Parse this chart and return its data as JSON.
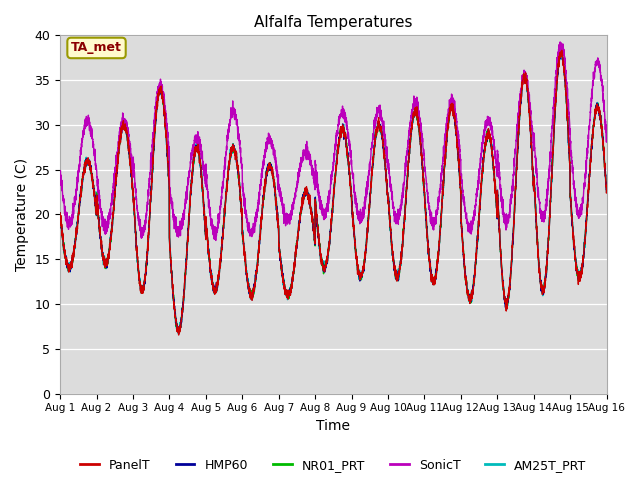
{
  "title": "Alfalfa Temperatures",
  "xlabel": "Time",
  "ylabel": "Temperature (C)",
  "annotation": "TA_met",
  "annotation_color": "#8B0000",
  "annotation_bg": "#FFFACD",
  "annotation_border": "#999900",
  "ylim": [
    0,
    40
  ],
  "yticks": [
    0,
    5,
    10,
    15,
    20,
    25,
    30,
    35,
    40
  ],
  "xlim_days": 15,
  "bg_color": "#DCDCDC",
  "fig_color": "#ffffff",
  "colors": {
    "PanelT": "#CC0000",
    "HMP60": "#000099",
    "NR01_PRT": "#00BB00",
    "SonicT": "#BB00BB",
    "AM25T_PRT": "#00BBBB"
  },
  "legend_order": [
    "PanelT",
    "HMP60",
    "NR01_PRT",
    "SonicT",
    "AM25T_PRT"
  ],
  "daily_mins": [
    14.0,
    14.5,
    11.5,
    7.0,
    11.5,
    11.0,
    11.0,
    14.0,
    13.0,
    13.0,
    12.5,
    10.5,
    10.0,
    11.5,
    13.0
  ],
  "daily_maxs": [
    26.0,
    30.0,
    34.0,
    27.5,
    27.5,
    25.5,
    22.5,
    29.5,
    30.0,
    31.5,
    32.0,
    29.0,
    35.5,
    38.0,
    32.0
  ],
  "sonic_mins": [
    19.0,
    18.5,
    18.0,
    18.0,
    18.0,
    18.0,
    19.5,
    20.0,
    19.5,
    19.5,
    19.0,
    18.5,
    19.0,
    19.5,
    20.0
  ],
  "sonic_maxs": [
    30.5,
    30.5,
    34.5,
    28.5,
    31.5,
    28.5,
    27.0,
    31.5,
    31.5,
    32.5,
    32.5,
    30.5,
    35.5,
    39.0,
    37.0
  ],
  "num_points": 4320,
  "line_width": 1.0
}
